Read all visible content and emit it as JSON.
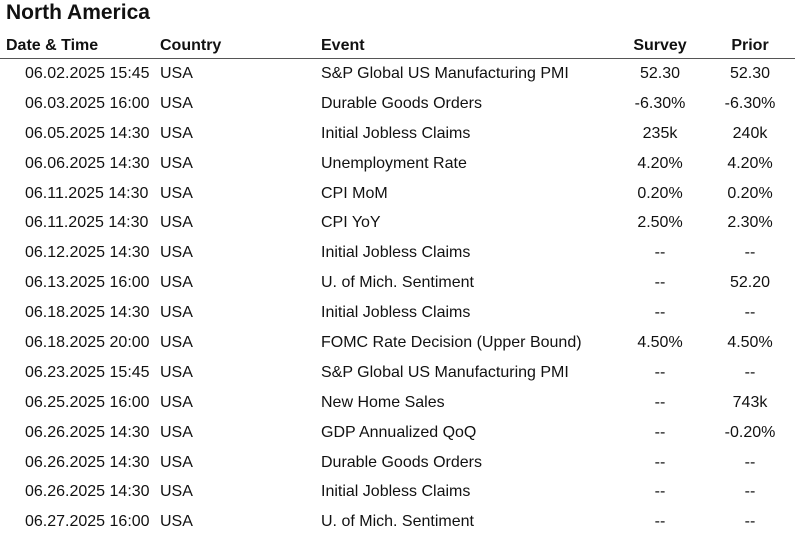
{
  "section_title": "North America",
  "columns": {
    "date_time": "Date & Time",
    "country": "Country",
    "event": "Event",
    "survey": "Survey",
    "prior": "Prior"
  },
  "rows": [
    {
      "date_time": "06.02.2025 15:45",
      "country": "USA",
      "event": "S&P Global US Manufacturing PMI",
      "survey": "52.30",
      "prior": "52.30"
    },
    {
      "date_time": "06.03.2025 16:00",
      "country": "USA",
      "event": "Durable Goods Orders",
      "survey": "-6.30%",
      "prior": "-6.30%"
    },
    {
      "date_time": "06.05.2025 14:30",
      "country": "USA",
      "event": "Initial Jobless Claims",
      "survey": "235k",
      "prior": "240k"
    },
    {
      "date_time": "06.06.2025 14:30",
      "country": "USA",
      "event": "Unemployment Rate",
      "survey": "4.20%",
      "prior": "4.20%"
    },
    {
      "date_time": "06.11.2025 14:30",
      "country": "USA",
      "event": "CPI MoM",
      "survey": "0.20%",
      "prior": "0.20%"
    },
    {
      "date_time": "06.11.2025 14:30",
      "country": "USA",
      "event": "CPI YoY",
      "survey": "2.50%",
      "prior": "2.30%"
    },
    {
      "date_time": "06.12.2025 14:30",
      "country": "USA",
      "event": "Initial Jobless Claims",
      "survey": "--",
      "prior": "--"
    },
    {
      "date_time": "06.13.2025 16:00",
      "country": "USA",
      "event": "U. of Mich. Sentiment",
      "survey": "--",
      "prior": "52.20"
    },
    {
      "date_time": "06.18.2025 14:30",
      "country": "USA",
      "event": "Initial Jobless Claims",
      "survey": "--",
      "prior": "--"
    },
    {
      "date_time": "06.18.2025 20:00",
      "country": "USA",
      "event": "FOMC Rate Decision (Upper Bound)",
      "survey": "4.50%",
      "prior": "4.50%"
    },
    {
      "date_time": "06.23.2025 15:45",
      "country": "USA",
      "event": "S&P Global US Manufacturing PMI",
      "survey": "--",
      "prior": "--"
    },
    {
      "date_time": "06.25.2025 16:00",
      "country": "USA",
      "event": "New Home Sales",
      "survey": "--",
      "prior": "743k"
    },
    {
      "date_time": "06.26.2025 14:30",
      "country": "USA",
      "event": "GDP Annualized QoQ",
      "survey": "--",
      "prior": "-0.20%"
    },
    {
      "date_time": "06.26.2025 14:30",
      "country": "USA",
      "event": "Durable Goods Orders",
      "survey": "--",
      "prior": "--"
    },
    {
      "date_time": "06.26.2025 14:30",
      "country": "USA",
      "event": "Initial Jobless Claims",
      "survey": "--",
      "prior": "--"
    },
    {
      "date_time": "06.27.2025 16:00",
      "country": "USA",
      "event": "U. of Mich. Sentiment",
      "survey": "--",
      "prior": "--"
    }
  ]
}
